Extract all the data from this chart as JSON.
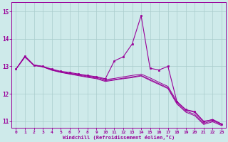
{
  "xlabel": "Windchill (Refroidissement éolien,°C)",
  "background_color": "#ceeaea",
  "line_color": "#990099",
  "grid_color": "#aacccc",
  "xlim": [
    -0.5,
    23.5
  ],
  "ylim": [
    10.75,
    15.35
  ],
  "yticks": [
    11,
    12,
    13,
    14,
    15
  ],
  "xticks": [
    0,
    1,
    2,
    3,
    4,
    5,
    6,
    7,
    8,
    9,
    10,
    11,
    12,
    13,
    14,
    15,
    16,
    17,
    18,
    19,
    20,
    21,
    22,
    23
  ],
  "series": {
    "line1": [
      12.9,
      13.38,
      13.05,
      13.0,
      12.9,
      12.82,
      12.78,
      12.72,
      12.67,
      12.62,
      12.55,
      13.2,
      13.35,
      13.82,
      14.85,
      12.93,
      12.87,
      13.0,
      11.72,
      11.42,
      11.35,
      11.0,
      11.05,
      10.9
    ],
    "line2": [
      12.9,
      13.35,
      13.05,
      13.0,
      12.88,
      12.8,
      12.75,
      12.7,
      12.65,
      12.6,
      12.52,
      12.56,
      12.62,
      12.67,
      12.72,
      12.58,
      12.42,
      12.27,
      11.72,
      11.42,
      11.32,
      10.97,
      11.07,
      10.9
    ],
    "line3": [
      12.9,
      13.35,
      13.04,
      12.99,
      12.87,
      12.79,
      12.73,
      12.68,
      12.62,
      12.57,
      12.48,
      12.52,
      12.57,
      12.62,
      12.67,
      12.52,
      12.37,
      12.22,
      11.67,
      11.37,
      11.25,
      10.92,
      11.02,
      10.87
    ],
    "line4": [
      12.9,
      13.34,
      13.03,
      12.98,
      12.86,
      12.78,
      12.72,
      12.66,
      12.6,
      12.55,
      12.45,
      12.5,
      12.55,
      12.59,
      12.65,
      12.49,
      12.34,
      12.19,
      11.63,
      11.33,
      11.2,
      10.88,
      10.98,
      10.84
    ]
  }
}
